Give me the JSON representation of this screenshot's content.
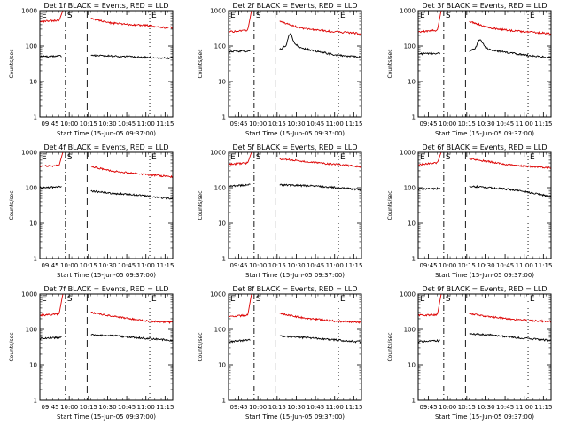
{
  "figure": {
    "ylabel": "Counts/sec",
    "xlabel": "Start Time (15-Jun-05 09:37:00)",
    "x_ticks": [
      "09:45",
      "10:00",
      "10:15",
      "10:30",
      "10:45",
      "11:00",
      "11:15"
    ],
    "x_tick_values_min": [
      8,
      23,
      38,
      53,
      68,
      83,
      98
    ],
    "y_ticks": [
      "1",
      "10",
      "100",
      "1000"
    ],
    "y_tick_values": [
      1,
      10,
      100,
      1000
    ],
    "markers": [
      {
        "label": "E",
        "x_min": 0,
        "style": "solid"
      },
      {
        "label": "S",
        "x_min": 20,
        "style": "dashdot"
      },
      {
        "label": "",
        "x_min": 37,
        "style": "dashed"
      },
      {
        "label": "E",
        "x_min": 86,
        "style": "dotted"
      }
    ]
  },
  "colors": {
    "events": "#000000",
    "lld": "#dd0000",
    "axis": "#000000"
  },
  "chart_data": [
    {
      "type": "line",
      "title": "Det 1f BLACK = Events, RED = LLD",
      "xlim": [
        0,
        104
      ],
      "ylim": [
        1,
        1000
      ],
      "yscale": "log",
      "series": [
        {
          "name": "Events",
          "x": [
            0,
            17,
            20,
            37,
            40,
            55,
            70,
            85,
            100,
            104
          ],
          "values": [
            50,
            52,
            null,
            null,
            55,
            52,
            50,
            48,
            45,
            47
          ]
        },
        {
          "name": "LLD",
          "x": [
            0,
            15,
            18,
            20,
            37,
            40,
            55,
            70,
            85,
            100,
            104
          ],
          "values": [
            500,
            520,
            1000,
            null,
            null,
            600,
            450,
            400,
            380,
            320,
            340
          ]
        }
      ]
    },
    {
      "type": "line",
      "title": "Det 2f BLACK = Events, RED = LLD",
      "xlim": [
        0,
        104
      ],
      "ylim": [
        1,
        1000
      ],
      "yscale": "log",
      "series": [
        {
          "name": "Events",
          "x": [
            0,
            17,
            20,
            37,
            40,
            45,
            47,
            49,
            51,
            55,
            70,
            85,
            100,
            104
          ],
          "values": [
            70,
            72,
            null,
            null,
            80,
            100,
            200,
            220,
            130,
            90,
            70,
            55,
            50,
            50
          ]
        },
        {
          "name": "LLD",
          "x": [
            0,
            15,
            18,
            20,
            37,
            40,
            55,
            70,
            85,
            100,
            104
          ],
          "values": [
            250,
            280,
            1000,
            null,
            null,
            500,
            330,
            280,
            250,
            230,
            220
          ]
        }
      ]
    },
    {
      "type": "line",
      "title": "Det 3f BLACK = Events, RED = LLD",
      "xlim": [
        0,
        104
      ],
      "ylim": [
        1,
        1000
      ],
      "yscale": "log",
      "series": [
        {
          "name": "Events",
          "x": [
            0,
            17,
            20,
            37,
            40,
            45,
            47,
            49,
            51,
            55,
            70,
            85,
            100,
            104
          ],
          "values": [
            60,
            62,
            null,
            null,
            70,
            90,
            140,
            150,
            110,
            80,
            65,
            55,
            48,
            48
          ]
        },
        {
          "name": "LLD",
          "x": [
            0,
            15,
            18,
            20,
            37,
            40,
            55,
            70,
            85,
            100,
            104
          ],
          "values": [
            250,
            280,
            1000,
            null,
            null,
            500,
            330,
            280,
            250,
            230,
            220
          ]
        }
      ]
    },
    {
      "type": "line",
      "title": "Det 4f BLACK = Events, RED = LLD",
      "xlim": [
        0,
        104
      ],
      "ylim": [
        1,
        1000
      ],
      "yscale": "log",
      "series": [
        {
          "name": "Events",
          "x": [
            0,
            17,
            20,
            37,
            40,
            55,
            70,
            85,
            100,
            104
          ],
          "values": [
            100,
            105,
            null,
            null,
            80,
            70,
            65,
            58,
            50,
            48
          ]
        },
        {
          "name": "LLD",
          "x": [
            0,
            15,
            18,
            20,
            37,
            40,
            55,
            70,
            85,
            100,
            104
          ],
          "values": [
            400,
            420,
            1000,
            null,
            null,
            400,
            300,
            260,
            230,
            210,
            200
          ]
        }
      ]
    },
    {
      "type": "line",
      "title": "Det 5f BLACK = Events, RED = LLD",
      "xlim": [
        0,
        104
      ],
      "ylim": [
        1,
        1000
      ],
      "yscale": "log",
      "series": [
        {
          "name": "Events",
          "x": [
            0,
            17,
            20,
            37,
            40,
            55,
            70,
            85,
            100,
            104
          ],
          "values": [
            110,
            120,
            null,
            null,
            120,
            115,
            110,
            100,
            90,
            88
          ]
        },
        {
          "name": "LLD",
          "x": [
            0,
            15,
            18,
            20,
            37,
            40,
            55,
            70,
            85,
            100,
            104
          ],
          "values": [
            450,
            500,
            1000,
            null,
            null,
            650,
            580,
            500,
            450,
            400,
            390
          ]
        }
      ]
    },
    {
      "type": "line",
      "title": "Det 6f BLACK = Events, RED = LLD",
      "xlim": [
        0,
        104
      ],
      "ylim": [
        1,
        1000
      ],
      "yscale": "log",
      "series": [
        {
          "name": "Events",
          "x": [
            0,
            17,
            20,
            37,
            40,
            55,
            70,
            85,
            100,
            104
          ],
          "values": [
            90,
            95,
            null,
            null,
            110,
            100,
            90,
            75,
            60,
            58
          ]
        },
        {
          "name": "LLD",
          "x": [
            0,
            15,
            18,
            20,
            37,
            40,
            55,
            70,
            85,
            100,
            104
          ],
          "values": [
            450,
            500,
            1000,
            null,
            null,
            650,
            550,
            450,
            400,
            370,
            360
          ]
        }
      ]
    },
    {
      "type": "line",
      "title": "Det 7f BLACK = Events, RED = LLD",
      "xlim": [
        0,
        104
      ],
      "ylim": [
        1,
        1000
      ],
      "yscale": "log",
      "series": [
        {
          "name": "Events",
          "x": [
            0,
            17,
            20,
            37,
            40,
            55,
            70,
            85,
            100,
            104
          ],
          "values": [
            55,
            60,
            null,
            null,
            70,
            68,
            60,
            55,
            50,
            48
          ]
        },
        {
          "name": "LLD",
          "x": [
            0,
            15,
            18,
            20,
            37,
            40,
            55,
            70,
            85,
            100,
            104
          ],
          "values": [
            250,
            270,
            1000,
            null,
            null,
            300,
            240,
            200,
            170,
            160,
            160
          ]
        }
      ]
    },
    {
      "type": "line",
      "title": "Det 8f BLACK = Events, RED = LLD",
      "xlim": [
        0,
        104
      ],
      "ylim": [
        1,
        1000
      ],
      "yscale": "log",
      "series": [
        {
          "name": "Events",
          "x": [
            0,
            17,
            20,
            37,
            40,
            55,
            70,
            85,
            100,
            104
          ],
          "values": [
            45,
            50,
            null,
            null,
            65,
            60,
            55,
            50,
            45,
            45
          ]
        },
        {
          "name": "LLD",
          "x": [
            0,
            15,
            18,
            20,
            37,
            40,
            55,
            70,
            85,
            100,
            104
          ],
          "values": [
            230,
            250,
            1000,
            null,
            null,
            280,
            220,
            190,
            170,
            160,
            160
          ]
        }
      ]
    },
    {
      "type": "line",
      "title": "Det 9f BLACK = Events, RED = LLD",
      "xlim": [
        0,
        104
      ],
      "ylim": [
        1,
        1000
      ],
      "yscale": "log",
      "series": [
        {
          "name": "Events",
          "x": [
            0,
            17,
            20,
            37,
            40,
            55,
            70,
            85,
            100,
            104
          ],
          "values": [
            45,
            48,
            null,
            null,
            75,
            70,
            62,
            55,
            50,
            48
          ]
        },
        {
          "name": "LLD",
          "x": [
            0,
            15,
            18,
            20,
            37,
            40,
            55,
            70,
            85,
            100,
            104
          ],
          "values": [
            250,
            260,
            1000,
            null,
            null,
            280,
            230,
            200,
            180,
            170,
            170
          ]
        }
      ]
    }
  ]
}
